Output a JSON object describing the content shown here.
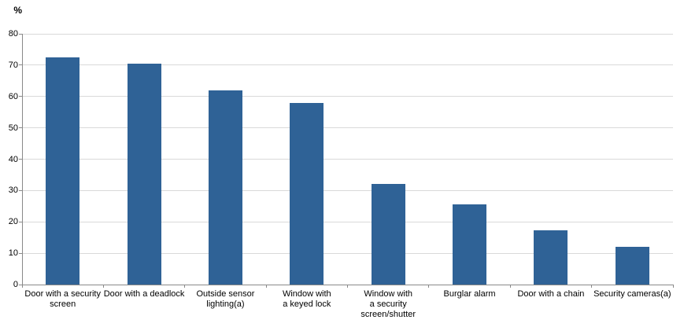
{
  "chart_data": {
    "type": "bar",
    "title": "",
    "ylabel": "%",
    "xlabel": "",
    "categories": [
      "Door with a security\nscreen",
      "Door with a deadlock",
      "Outside sensor\nlighting(a)",
      "Window with\na keyed lock",
      "Window with\na security\nscreen/shutter",
      "Burglar alarm",
      "Door with a chain",
      "Security cameras(a)"
    ],
    "values": [
      72.5,
      70.5,
      62.0,
      58.0,
      32.2,
      25.5,
      17.3,
      12.0
    ],
    "ylim": [
      0,
      80
    ],
    "yticks": [
      0,
      10,
      20,
      30,
      40,
      50,
      60,
      70,
      80
    ],
    "grid": true,
    "legend_position": "none",
    "colors": {
      "bar": "#2F6296",
      "gridline": "#D9D9D9",
      "axis": "#898989",
      "text": "#000000",
      "background": "#FFFFFF"
    }
  }
}
